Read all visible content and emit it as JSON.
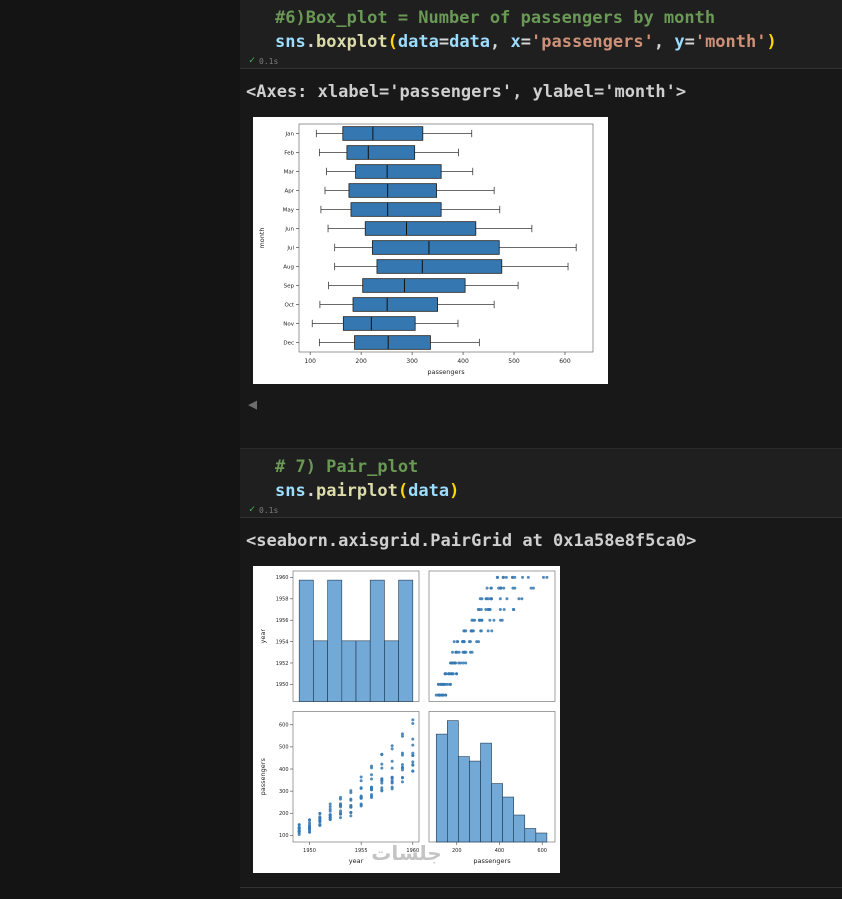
{
  "notebook": {
    "collapse_arrow": "◀",
    "cells": [
      {
        "code_lines": [
          [
            {
              "t": "#6)Box_plot = Number of passengers by month",
              "c": "com"
            }
          ],
          [
            {
              "t": "sns",
              "c": "var"
            },
            {
              "t": ".",
              "c": "pln"
            },
            {
              "t": "boxplot",
              "c": "fn"
            },
            {
              "t": "(",
              "c": "brk"
            },
            {
              "t": "data",
              "c": "var"
            },
            {
              "t": "=",
              "c": "pln"
            },
            {
              "t": "data",
              "c": "var"
            },
            {
              "t": ", ",
              "c": "pln"
            },
            {
              "t": "x",
              "c": "var"
            },
            {
              "t": "=",
              "c": "pln"
            },
            {
              "t": "'passengers'",
              "c": "str"
            },
            {
              "t": ", ",
              "c": "pln"
            },
            {
              "t": "y",
              "c": "var"
            },
            {
              "t": "=",
              "c": "pln"
            },
            {
              "t": "'month'",
              "c": "str"
            },
            {
              "t": ")",
              "c": "brk"
            }
          ]
        ],
        "exec_check": "✓",
        "exec_time": "0.1s",
        "output_text": "<Axes: xlabel='passengers', ylabel='month'>"
      },
      {
        "code_lines": [
          [
            {
              "t": "# 7) Pair_plot",
              "c": "com"
            }
          ],
          [
            {
              "t": "sns",
              "c": "var"
            },
            {
              "t": ".",
              "c": "pln"
            },
            {
              "t": "pairplot",
              "c": "fn"
            },
            {
              "t": "(",
              "c": "brk"
            },
            {
              "t": "data",
              "c": "var"
            },
            {
              "t": ")",
              "c": "brk"
            }
          ]
        ],
        "exec_check": "✓",
        "exec_time": "0.1s",
        "output_text": "<seaborn.axisgrid.PairGrid at 0x1a58e8f5ca0>"
      }
    ]
  },
  "watermark": "جلسات",
  "chart_data": [
    {
      "type": "boxplot",
      "orientation": "horizontal",
      "xlabel": "passengers",
      "ylabel": "month",
      "xlim": [
        78,
        655
      ],
      "xticks": [
        100,
        200,
        300,
        400,
        500,
        600
      ],
      "categories": [
        "Jan",
        "Feb",
        "Mar",
        "Apr",
        "May",
        "Jun",
        "Jul",
        "Aug",
        "Sep",
        "Oct",
        "Nov",
        "Dec"
      ],
      "box_color": "#3578b1",
      "stats": [
        {
          "lo": 112,
          "q1": 164,
          "med": 223,
          "q3": 321,
          "hi": 417
        },
        {
          "lo": 118,
          "q1": 172,
          "med": 214,
          "q3": 305,
          "hi": 391
        },
        {
          "lo": 132,
          "q1": 189,
          "med": 251,
          "q3": 357,
          "hi": 419
        },
        {
          "lo": 129,
          "q1": 176,
          "med": 252,
          "q3": 348,
          "hi": 461
        },
        {
          "lo": 121,
          "q1": 180,
          "med": 252,
          "q3": 357,
          "hi": 472
        },
        {
          "lo": 135,
          "q1": 208,
          "med": 289,
          "q3": 425,
          "hi": 535
        },
        {
          "lo": 148,
          "q1": 222,
          "med": 333,
          "q3": 471,
          "hi": 622
        },
        {
          "lo": 148,
          "q1": 231,
          "med": 320,
          "q3": 476,
          "hi": 606
        },
        {
          "lo": 136,
          "q1": 203,
          "med": 285,
          "q3": 404,
          "hi": 508
        },
        {
          "lo": 119,
          "q1": 184,
          "med": 251,
          "q3": 350,
          "hi": 461
        },
        {
          "lo": 104,
          "q1": 165,
          "med": 220,
          "q3": 306,
          "hi": 390
        },
        {
          "lo": 118,
          "q1": 187,
          "med": 253,
          "q3": 336,
          "hi": 432
        }
      ]
    },
    {
      "type": "pairplot",
      "variables": [
        "year",
        "passengers"
      ],
      "xlabels": [
        "year",
        "passengers"
      ],
      "ylabels": [
        "year",
        "passengers"
      ],
      "year_ticks": [
        1950,
        1952,
        1954,
        1956,
        1958,
        1960
      ],
      "passenger_ticks": [
        100,
        200,
        300,
        400,
        500,
        600
      ],
      "year_xticks": [
        1950,
        1955,
        1960
      ],
      "passenger_xticks": [
        200,
        400,
        600
      ],
      "year_hist_bins": 8,
      "passenger_hist_bins": 10,
      "point_color": "#3578b1",
      "bar_color": "#5b9ad0",
      "years": [
        1949,
        1950,
        1951,
        1952,
        1953,
        1954,
        1955,
        1956,
        1957,
        1958,
        1959,
        1960
      ],
      "flights": {
        "Jan": [
          112,
          115,
          145,
          171,
          196,
          204,
          242,
          284,
          315,
          340,
          360,
          417
        ],
        "Feb": [
          118,
          126,
          150,
          180,
          196,
          188,
          233,
          277,
          301,
          318,
          342,
          391
        ],
        "Mar": [
          132,
          141,
          178,
          193,
          236,
          235,
          267,
          317,
          356,
          362,
          406,
          419
        ],
        "Apr": [
          129,
          135,
          163,
          181,
          235,
          227,
          269,
          313,
          348,
          348,
          396,
          461
        ],
        "May": [
          121,
          125,
          172,
          183,
          229,
          234,
          270,
          318,
          355,
          363,
          420,
          472
        ],
        "Jun": [
          135,
          149,
          178,
          218,
          243,
          264,
          315,
          374,
          422,
          435,
          472,
          535
        ],
        "Jul": [
          148,
          170,
          199,
          230,
          264,
          302,
          364,
          413,
          465,
          491,
          548,
          622
        ],
        "Aug": [
          148,
          170,
          199,
          242,
          272,
          293,
          347,
          405,
          467,
          505,
          559,
          606
        ],
        "Sep": [
          136,
          158,
          184,
          209,
          237,
          259,
          312,
          355,
          404,
          404,
          463,
          508
        ],
        "Oct": [
          119,
          133,
          162,
          191,
          211,
          229,
          274,
          306,
          347,
          359,
          407,
          461
        ],
        "Nov": [
          104,
          114,
          146,
          172,
          180,
          203,
          237,
          271,
          305,
          310,
          362,
          390
        ],
        "Dec": [
          118,
          140,
          166,
          194,
          201,
          229,
          278,
          306,
          336,
          337,
          405,
          432
        ]
      }
    }
  ]
}
